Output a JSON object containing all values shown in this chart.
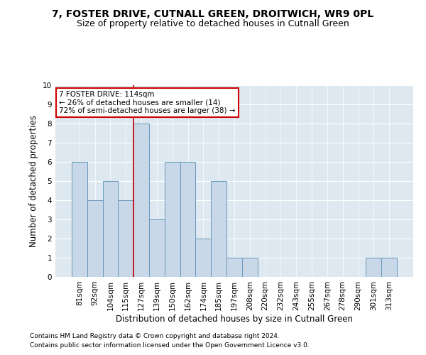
{
  "title": "7, FOSTER DRIVE, CUTNALL GREEN, DROITWICH, WR9 0PL",
  "subtitle": "Size of property relative to detached houses in Cutnall Green",
  "xlabel": "Distribution of detached houses by size in Cutnall Green",
  "ylabel": "Number of detached properties",
  "categories": [
    "81sqm",
    "92sqm",
    "104sqm",
    "115sqm",
    "127sqm",
    "139sqm",
    "150sqm",
    "162sqm",
    "174sqm",
    "185sqm",
    "197sqm",
    "208sqm",
    "220sqm",
    "232sqm",
    "243sqm",
    "255sqm",
    "267sqm",
    "278sqm",
    "290sqm",
    "301sqm",
    "313sqm"
  ],
  "values": [
    6,
    4,
    5,
    4,
    8,
    3,
    6,
    6,
    2,
    5,
    1,
    1,
    0,
    0,
    0,
    0,
    0,
    0,
    0,
    1,
    1
  ],
  "bar_color": "#c8d8e8",
  "bar_edge_color": "#6699bb",
  "property_line_x": 3.5,
  "annotation_line1": "7 FOSTER DRIVE: 114sqm",
  "annotation_line2": "← 26% of detached houses are smaller (14)",
  "annotation_line3": "72% of semi-detached houses are larger (38) →",
  "annotation_box_color": "#ffffff",
  "annotation_box_edge": "#cc0000",
  "property_line_color": "#cc0000",
  "ylim": [
    0,
    10
  ],
  "yticks": [
    0,
    1,
    2,
    3,
    4,
    5,
    6,
    7,
    8,
    9,
    10
  ],
  "background_color": "#dde8f0",
  "grid_color": "#ffffff",
  "footer_line1": "Contains HM Land Registry data © Crown copyright and database right 2024.",
  "footer_line2": "Contains public sector information licensed under the Open Government Licence v3.0.",
  "title_fontsize": 10,
  "subtitle_fontsize": 9,
  "xlabel_fontsize": 8.5,
  "ylabel_fontsize": 8.5,
  "tick_fontsize": 7.5,
  "annotation_fontsize": 7.5,
  "footer_fontsize": 6.5
}
